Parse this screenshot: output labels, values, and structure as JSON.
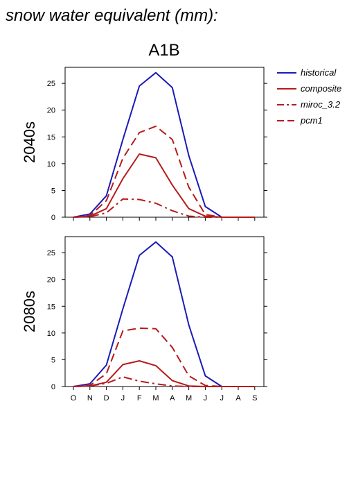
{
  "figure": {
    "title": "snow water equivalent (mm):",
    "subtitle": "A1B"
  },
  "legend": {
    "placement": "top-right, outside plot",
    "entries": [
      {
        "name": "historical",
        "color": "#1a1ab8",
        "dash": "solid"
      },
      {
        "name": "composite",
        "color": "#b81a1a",
        "dash": "solid"
      },
      {
        "name": "miroc_3.2",
        "color": "#b81a1a",
        "dash": "dashdot"
      },
      {
        "name": "pcm1",
        "color": "#b81a1a",
        "dash": "dashed"
      }
    ]
  },
  "chart_data": [
    {
      "type": "line",
      "panel_label": "2040s",
      "categories": [
        "O",
        "N",
        "D",
        "J",
        "F",
        "M",
        "A",
        "M",
        "J",
        "J",
        "A",
        "S"
      ],
      "ylim": [
        0,
        28
      ],
      "yticks": [
        0,
        5,
        10,
        15,
        20,
        25
      ],
      "grid": false,
      "series": [
        {
          "name": "historical",
          "values": [
            0,
            0.6,
            4.0,
            14.5,
            24.5,
            27.0,
            24.2,
            11.5,
            2.0,
            0,
            0,
            0
          ]
        },
        {
          "name": "composite",
          "values": [
            0,
            0.2,
            1.6,
            7.2,
            11.8,
            11.1,
            6.0,
            1.6,
            0.2,
            0,
            0,
            0
          ]
        },
        {
          "name": "miroc_3.2",
          "values": [
            0,
            0.1,
            0.8,
            3.4,
            3.3,
            2.6,
            1.2,
            0.2,
            0,
            0,
            0,
            0
          ]
        },
        {
          "name": "pcm1",
          "values": [
            0,
            0.3,
            3.1,
            11.0,
            15.8,
            17.0,
            14.5,
            5.6,
            0.5,
            0,
            0,
            0
          ]
        }
      ]
    },
    {
      "type": "line",
      "panel_label": "2080s",
      "categories": [
        "O",
        "N",
        "D",
        "J",
        "F",
        "M",
        "A",
        "M",
        "J",
        "J",
        "A",
        "S"
      ],
      "ylim": [
        0,
        28
      ],
      "yticks": [
        0,
        5,
        10,
        15,
        20,
        25
      ],
      "grid": false,
      "series": [
        {
          "name": "historical",
          "values": [
            0,
            0.5,
            4.0,
            14.5,
            24.5,
            27.0,
            24.2,
            11.5,
            2.0,
            0,
            0,
            0
          ]
        },
        {
          "name": "composite",
          "values": [
            0,
            0.1,
            0.8,
            4.1,
            4.8,
            3.9,
            1.1,
            0.1,
            0,
            0,
            0,
            0
          ]
        },
        {
          "name": "miroc_3.2",
          "values": [
            0,
            0.1,
            0.6,
            1.8,
            1.0,
            0.5,
            0.1,
            0,
            0,
            0,
            0,
            0
          ]
        },
        {
          "name": "pcm1",
          "values": [
            0,
            0.2,
            2.4,
            10.4,
            10.9,
            10.8,
            7.3,
            2.0,
            0.2,
            0,
            0,
            0
          ]
        }
      ]
    }
  ]
}
